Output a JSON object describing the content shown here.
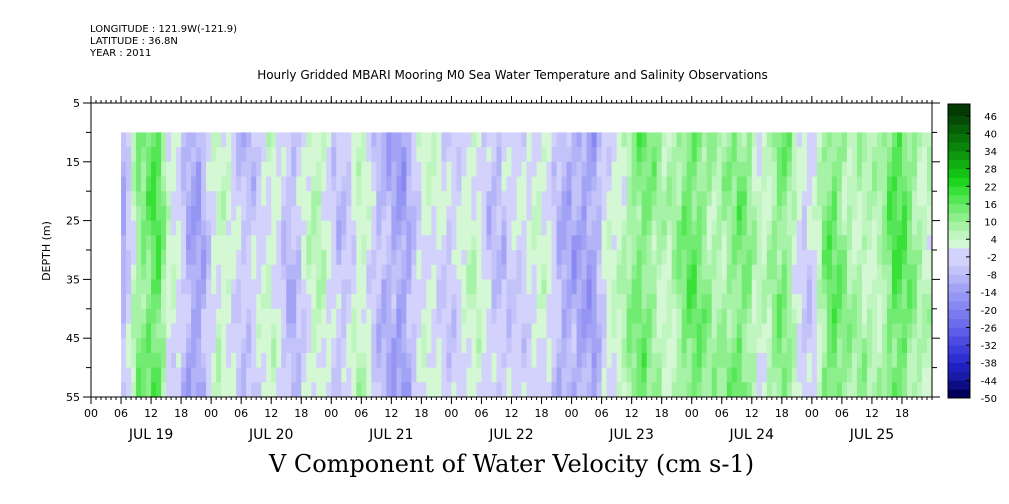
{
  "header": {
    "longitude": "LONGITUDE : 121.9W(-121.9)",
    "latitude": "LATITUDE : 36.8N",
    "year": "YEAR : 2011"
  },
  "chart_data": {
    "type": "heatmap",
    "title": "Hourly Gridded MBARI Mooring M0 Sea Water Temperature and Salinity Observations",
    "caption": "V Component of Water Velocity (cm s-1)",
    "ylabel": "DEPTH (m)",
    "y_axis": {
      "ylim": [
        5,
        55
      ],
      "inverted": true,
      "tick_labels": [
        "5",
        "15",
        "25",
        "35",
        "45",
        "55"
      ]
    },
    "x_axis": {
      "hour_tick_labels": [
        "00",
        "06",
        "12",
        "18"
      ],
      "day_labels": [
        "JUL 19",
        "JUL 20",
        "JUL 21",
        "JUL 22",
        "JUL 23",
        "JUL 24",
        "JUL 25"
      ],
      "range": [
        "JUL 19 00",
        "JUL 25 23"
      ]
    },
    "data_extent": {
      "depth_top": 10,
      "depth_bottom": 55,
      "start": "JUL 19 06"
    },
    "colorbar": {
      "labels": [
        "46",
        "40",
        "34",
        "28",
        "22",
        "16",
        "10",
        "4",
        "-2",
        "-8",
        "-14",
        "-20",
        "-26",
        "-32",
        "-38",
        "-44",
        "-50"
      ],
      "range": [
        -50,
        50
      ],
      "step": 3,
      "colors_negative": [
        "#00005a",
        "#0d0d86",
        "#1a1aa8",
        "#2020c0",
        "#2e2ed0",
        "#3d3ddb",
        "#4c4ce2",
        "#5c5ce8",
        "#6c6cec",
        "#7a7aef",
        "#8888f2",
        "#9595f4",
        "#a3a3f6",
        "#b3b3f8",
        "#c3c3fa",
        "#d2d2fc"
      ],
      "colors_positive": [
        "#d4f7d4",
        "#bff5bf",
        "#a6f2a6",
        "#8cef8c",
        "#72eb72",
        "#55e655",
        "#38e038",
        "#1fd61f",
        "#14c214",
        "#10ad10",
        "#0d980d",
        "#0a850a",
        "#087208",
        "#065e06",
        "#044b04",
        "#023a02"
      ]
    },
    "field_summary": {
      "value_range_shown": [
        -20,
        22
      ],
      "regime_notes": [
        "JUL 19 12: positive core near surface",
        "JUL 20-22: mostly negative (blue)",
        "JUL 22 18 - JUL 25: mostly positive (green)"
      ]
    }
  }
}
